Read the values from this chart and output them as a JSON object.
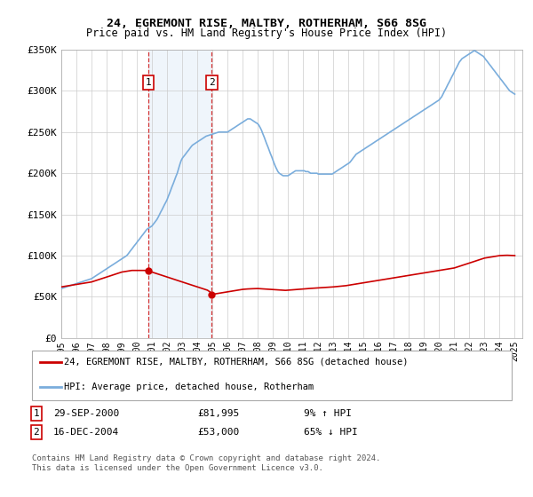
{
  "title": "24, EGREMONT RISE, MALTBY, ROTHERHAM, S66 8SG",
  "subtitle": "Price paid vs. HM Land Registry's House Price Index (HPI)",
  "ylim": [
    0,
    350000
  ],
  "yticks": [
    0,
    50000,
    100000,
    150000,
    200000,
    250000,
    300000,
    350000
  ],
  "ytick_labels": [
    "£0",
    "£50K",
    "£100K",
    "£150K",
    "£200K",
    "£250K",
    "£300K",
    "£350K"
  ],
  "xlim_start": 1995.0,
  "xlim_end": 2025.5,
  "xtick_years": [
    1995,
    1996,
    1997,
    1998,
    1999,
    2000,
    2001,
    2002,
    2003,
    2004,
    2005,
    2006,
    2007,
    2008,
    2009,
    2010,
    2011,
    2012,
    2013,
    2014,
    2015,
    2016,
    2017,
    2018,
    2019,
    2020,
    2021,
    2022,
    2023,
    2024,
    2025
  ],
  "transaction1_x": 2000.75,
  "transaction1_y": 81995,
  "transaction1_label": "1",
  "transaction1_date": "29-SEP-2000",
  "transaction1_price": "£81,995",
  "transaction1_hpi": "9% ↑ HPI",
  "transaction2_x": 2004.96,
  "transaction2_y": 53000,
  "transaction2_label": "2",
  "transaction2_date": "16-DEC-2004",
  "transaction2_price": "£53,000",
  "transaction2_hpi": "65% ↓ HPI",
  "legend_line1": "24, EGREMONT RISE, MALTBY, ROTHERHAM, S66 8SG (detached house)",
  "legend_line2": "HPI: Average price, detached house, Rotherham",
  "footnote": "Contains HM Land Registry data © Crown copyright and database right 2024.\nThis data is licensed under the Open Government Licence v3.0.",
  "property_color": "#cc0000",
  "hpi_color": "#7aaddc",
  "highlight_color": "#ddeeff",
  "background_color": "#ffffff",
  "hpi_x": [
    1995.0,
    1995.08,
    1995.17,
    1995.25,
    1995.33,
    1995.42,
    1995.5,
    1995.58,
    1995.67,
    1995.75,
    1995.83,
    1995.92,
    1996.0,
    1996.08,
    1996.17,
    1996.25,
    1996.33,
    1996.42,
    1996.5,
    1996.58,
    1996.67,
    1996.75,
    1996.83,
    1996.92,
    1997.0,
    1997.08,
    1997.17,
    1997.25,
    1997.33,
    1997.42,
    1997.5,
    1997.58,
    1997.67,
    1997.75,
    1997.83,
    1997.92,
    1998.0,
    1998.08,
    1998.17,
    1998.25,
    1998.33,
    1998.42,
    1998.5,
    1998.58,
    1998.67,
    1998.75,
    1998.83,
    1998.92,
    1999.0,
    1999.08,
    1999.17,
    1999.25,
    1999.33,
    1999.42,
    1999.5,
    1999.58,
    1999.67,
    1999.75,
    1999.83,
    1999.92,
    2000.0,
    2000.08,
    2000.17,
    2000.25,
    2000.33,
    2000.42,
    2000.5,
    2000.58,
    2000.67,
    2000.75,
    2000.83,
    2000.92,
    2001.0,
    2001.08,
    2001.17,
    2001.25,
    2001.33,
    2001.42,
    2001.5,
    2001.58,
    2001.67,
    2001.75,
    2001.83,
    2001.92,
    2002.0,
    2002.08,
    2002.17,
    2002.25,
    2002.33,
    2002.42,
    2002.5,
    2002.58,
    2002.67,
    2002.75,
    2002.83,
    2002.92,
    2003.0,
    2003.08,
    2003.17,
    2003.25,
    2003.33,
    2003.42,
    2003.5,
    2003.58,
    2003.67,
    2003.75,
    2003.83,
    2003.92,
    2004.0,
    2004.08,
    2004.17,
    2004.25,
    2004.33,
    2004.42,
    2004.5,
    2004.58,
    2004.67,
    2004.75,
    2004.83,
    2004.92,
    2005.0,
    2005.08,
    2005.17,
    2005.25,
    2005.33,
    2005.42,
    2005.5,
    2005.58,
    2005.67,
    2005.75,
    2005.83,
    2005.92,
    2006.0,
    2006.08,
    2006.17,
    2006.25,
    2006.33,
    2006.42,
    2006.5,
    2006.58,
    2006.67,
    2006.75,
    2006.83,
    2006.92,
    2007.0,
    2007.08,
    2007.17,
    2007.25,
    2007.33,
    2007.42,
    2007.5,
    2007.58,
    2007.67,
    2007.75,
    2007.83,
    2007.92,
    2008.0,
    2008.08,
    2008.17,
    2008.25,
    2008.33,
    2008.42,
    2008.5,
    2008.58,
    2008.67,
    2008.75,
    2008.83,
    2008.92,
    2009.0,
    2009.08,
    2009.17,
    2009.25,
    2009.33,
    2009.42,
    2009.5,
    2009.58,
    2009.67,
    2009.75,
    2009.83,
    2009.92,
    2010.0,
    2010.08,
    2010.17,
    2010.25,
    2010.33,
    2010.42,
    2010.5,
    2010.58,
    2010.67,
    2010.75,
    2010.83,
    2010.92,
    2011.0,
    2011.08,
    2011.17,
    2011.25,
    2011.33,
    2011.42,
    2011.5,
    2011.58,
    2011.67,
    2011.75,
    2011.83,
    2011.92,
    2012.0,
    2012.08,
    2012.17,
    2012.25,
    2012.33,
    2012.42,
    2012.5,
    2012.58,
    2012.67,
    2012.75,
    2012.83,
    2012.92,
    2013.0,
    2013.08,
    2013.17,
    2013.25,
    2013.33,
    2013.42,
    2013.5,
    2013.58,
    2013.67,
    2013.75,
    2013.83,
    2013.92,
    2014.0,
    2014.08,
    2014.17,
    2014.25,
    2014.33,
    2014.42,
    2014.5,
    2014.58,
    2014.67,
    2014.75,
    2014.83,
    2014.92,
    2015.0,
    2015.08,
    2015.17,
    2015.25,
    2015.33,
    2015.42,
    2015.5,
    2015.58,
    2015.67,
    2015.75,
    2015.83,
    2015.92,
    2016.0,
    2016.08,
    2016.17,
    2016.25,
    2016.33,
    2016.42,
    2016.5,
    2016.58,
    2016.67,
    2016.75,
    2016.83,
    2016.92,
    2017.0,
    2017.08,
    2017.17,
    2017.25,
    2017.33,
    2017.42,
    2017.5,
    2017.58,
    2017.67,
    2017.75,
    2017.83,
    2017.92,
    2018.0,
    2018.08,
    2018.17,
    2018.25,
    2018.33,
    2018.42,
    2018.5,
    2018.58,
    2018.67,
    2018.75,
    2018.83,
    2018.92,
    2019.0,
    2019.08,
    2019.17,
    2019.25,
    2019.33,
    2019.42,
    2019.5,
    2019.58,
    2019.67,
    2019.75,
    2019.83,
    2019.92,
    2020.0,
    2020.08,
    2020.17,
    2020.25,
    2020.33,
    2020.42,
    2020.5,
    2020.58,
    2020.67,
    2020.75,
    2020.83,
    2020.92,
    2021.0,
    2021.08,
    2021.17,
    2021.25,
    2021.33,
    2021.42,
    2021.5,
    2021.58,
    2021.67,
    2021.75,
    2021.83,
    2021.92,
    2022.0,
    2022.08,
    2022.17,
    2022.25,
    2022.33,
    2022.42,
    2022.5,
    2022.58,
    2022.67,
    2022.75,
    2022.83,
    2022.92,
    2023.0,
    2023.08,
    2023.17,
    2023.25,
    2023.33,
    2023.42,
    2023.5,
    2023.58,
    2023.67,
    2023.75,
    2023.83,
    2023.92,
    2024.0,
    2024.08,
    2024.17,
    2024.25,
    2024.33,
    2024.42,
    2024.5,
    2024.58,
    2024.67,
    2024.75,
    2024.83,
    2024.92,
    2025.0
  ],
  "hpi_y": [
    60000,
    60500,
    61000,
    61500,
    62000,
    62500,
    63000,
    63500,
    64000,
    64500,
    65000,
    65500,
    66000,
    66500,
    67000,
    67500,
    68000,
    68500,
    69000,
    69500,
    70000,
    70500,
    71000,
    71500,
    72000,
    73000,
    74000,
    75000,
    76000,
    77000,
    78000,
    79000,
    80000,
    81000,
    82000,
    83000,
    84000,
    85000,
    86000,
    87000,
    88000,
    89000,
    90000,
    91000,
    92000,
    93000,
    94000,
    95000,
    96000,
    97000,
    98000,
    99000,
    100000,
    102000,
    104000,
    106000,
    108000,
    110000,
    112000,
    114000,
    116000,
    118000,
    120000,
    122000,
    124000,
    126000,
    128000,
    130000,
    132000,
    133000,
    134000,
    135000,
    136000,
    138000,
    140000,
    142000,
    144000,
    147000,
    150000,
    153000,
    156000,
    159000,
    162000,
    165000,
    168000,
    172000,
    176000,
    180000,
    184000,
    188000,
    192000,
    196000,
    200000,
    205000,
    210000,
    215000,
    218000,
    220000,
    222000,
    224000,
    226000,
    228000,
    230000,
    232000,
    234000,
    235000,
    236000,
    237000,
    238000,
    239000,
    240000,
    241000,
    242000,
    243000,
    244000,
    245000,
    245500,
    246000,
    246500,
    247000,
    247500,
    248000,
    248500,
    249000,
    249500,
    250000,
    250000,
    250000,
    250000,
    250000,
    250000,
    250000,
    250000,
    251000,
    252000,
    253000,
    254000,
    255000,
    256000,
    257000,
    258000,
    259000,
    260000,
    261000,
    262000,
    263000,
    264000,
    265000,
    266000,
    266000,
    266000,
    265000,
    264000,
    263000,
    262000,
    261000,
    260000,
    258000,
    255000,
    252000,
    248000,
    244000,
    240000,
    236000,
    232000,
    228000,
    224000,
    220000,
    216000,
    212000,
    208000,
    205000,
    202000,
    200000,
    199000,
    198000,
    197000,
    197000,
    197000,
    197000,
    197000,
    198000,
    199000,
    200000,
    201000,
    202000,
    203000,
    203000,
    203000,
    203000,
    203000,
    203000,
    203000,
    203000,
    202000,
    202000,
    202000,
    201000,
    200000,
    200000,
    200000,
    200000,
    200000,
    200000,
    199000,
    199000,
    199000,
    199000,
    199000,
    199000,
    199000,
    199000,
    199000,
    199000,
    199000,
    199000,
    200000,
    201000,
    202000,
    203000,
    204000,
    205000,
    206000,
    207000,
    208000,
    209000,
    210000,
    211000,
    212000,
    213000,
    215000,
    217000,
    219000,
    221000,
    223000,
    224000,
    225000,
    226000,
    227000,
    228000,
    229000,
    230000,
    231000,
    232000,
    233000,
    234000,
    235000,
    236000,
    237000,
    238000,
    239000,
    240000,
    241000,
    242000,
    243000,
    244000,
    245000,
    246000,
    247000,
    248000,
    249000,
    250000,
    251000,
    252000,
    253000,
    254000,
    255000,
    256000,
    257000,
    258000,
    259000,
    260000,
    261000,
    262000,
    263000,
    264000,
    265000,
    266000,
    267000,
    268000,
    269000,
    270000,
    271000,
    272000,
    273000,
    274000,
    275000,
    276000,
    277000,
    278000,
    279000,
    280000,
    281000,
    282000,
    283000,
    284000,
    285000,
    286000,
    287000,
    288000,
    289000,
    291000,
    293000,
    296000,
    299000,
    302000,
    305000,
    308000,
    311000,
    314000,
    317000,
    320000,
    323000,
    326000,
    329000,
    332000,
    335000,
    337000,
    339000,
    340000,
    341000,
    342000,
    343000,
    344000,
    345000,
    346000,
    347000,
    348000,
    349000,
    348000,
    347000,
    346000,
    345000,
    344000,
    343000,
    342000,
    340000,
    338000,
    336000,
    334000,
    332000,
    330000,
    328000,
    326000,
    324000,
    322000,
    320000,
    318000,
    316000,
    314000,
    312000,
    310000,
    308000,
    306000,
    304000,
    302000,
    300000,
    299000,
    298000,
    297000,
    296000
  ],
  "prop_x": [
    1995.0,
    1995.17,
    1995.33,
    1995.5,
    1995.67,
    1995.83,
    1996.0,
    1996.17,
    1996.33,
    1996.5,
    1996.67,
    1996.83,
    1997.0,
    1997.17,
    1997.33,
    1997.5,
    1997.67,
    1997.83,
    1998.0,
    1998.17,
    1998.33,
    1998.5,
    1998.67,
    1998.83,
    1999.0,
    1999.17,
    1999.33,
    1999.5,
    1999.67,
    1999.83,
    2000.0,
    2000.17,
    2000.33,
    2000.5,
    2000.67,
    2000.75,
    2000.83,
    2001.0,
    2001.17,
    2001.33,
    2001.5,
    2001.67,
    2001.83,
    2002.0,
    2002.17,
    2002.33,
    2002.5,
    2002.67,
    2002.83,
    2003.0,
    2003.17,
    2003.33,
    2003.5,
    2003.67,
    2003.83,
    2004.0,
    2004.17,
    2004.33,
    2004.5,
    2004.67,
    2004.83,
    2004.96,
    2005.0,
    2005.17,
    2005.33,
    2005.5,
    2005.67,
    2005.83,
    2006.0,
    2006.17,
    2006.33,
    2006.5,
    2006.67,
    2006.83,
    2007.0,
    2007.17,
    2007.33,
    2007.5,
    2007.67,
    2007.83,
    2008.0,
    2008.17,
    2008.33,
    2008.5,
    2008.67,
    2008.83,
    2009.0,
    2009.17,
    2009.33,
    2009.5,
    2009.67,
    2009.83,
    2010.0,
    2010.17,
    2010.33,
    2010.5,
    2010.67,
    2010.83,
    2011.0,
    2011.17,
    2011.33,
    2011.5,
    2011.67,
    2011.83,
    2012.0,
    2012.17,
    2012.33,
    2012.5,
    2012.67,
    2012.83,
    2013.0,
    2013.17,
    2013.33,
    2013.5,
    2013.67,
    2013.83,
    2014.0,
    2014.17,
    2014.33,
    2014.5,
    2014.67,
    2014.83,
    2015.0,
    2015.17,
    2015.33,
    2015.5,
    2015.67,
    2015.83,
    2016.0,
    2016.17,
    2016.33,
    2016.5,
    2016.67,
    2016.83,
    2017.0,
    2017.17,
    2017.33,
    2017.5,
    2017.67,
    2017.83,
    2018.0,
    2018.17,
    2018.33,
    2018.5,
    2018.67,
    2018.83,
    2019.0,
    2019.17,
    2019.33,
    2019.5,
    2019.67,
    2019.83,
    2020.0,
    2020.17,
    2020.33,
    2020.5,
    2020.67,
    2020.83,
    2021.0,
    2021.17,
    2021.33,
    2021.5,
    2021.67,
    2021.83,
    2022.0,
    2022.17,
    2022.33,
    2022.5,
    2022.67,
    2022.83,
    2023.0,
    2023.17,
    2023.33,
    2023.5,
    2023.67,
    2023.83,
    2024.0,
    2024.17,
    2024.33,
    2024.5,
    2024.67,
    2024.83,
    2025.0
  ],
  "prop_y": [
    62000,
    62500,
    63000,
    63500,
    64000,
    64500,
    65000,
    65500,
    66000,
    66500,
    67000,
    67500,
    68000,
    69000,
    70000,
    71000,
    72000,
    73000,
    74000,
    75000,
    76000,
    77000,
    78000,
    79000,
    80000,
    80500,
    81000,
    81500,
    82000,
    82000,
    82000,
    82000,
    82000,
    82000,
    82000,
    81995,
    81000,
    80000,
    79000,
    78000,
    77000,
    76000,
    75000,
    74000,
    73000,
    72000,
    71000,
    70000,
    69000,
    68000,
    67000,
    66000,
    65000,
    64000,
    63000,
    62000,
    61000,
    60000,
    59000,
    58000,
    56000,
    53000,
    53200,
    53500,
    54000,
    54500,
    55000,
    55500,
    56000,
    56500,
    57000,
    57500,
    58000,
    58500,
    59000,
    59300,
    59500,
    59700,
    59800,
    59900,
    60000,
    59800,
    59600,
    59400,
    59200,
    59000,
    58800,
    58600,
    58400,
    58200,
    58000,
    57800,
    58000,
    58200,
    58500,
    58800,
    59000,
    59200,
    59500,
    59700,
    60000,
    60200,
    60400,
    60600,
    60800,
    61000,
    61200,
    61400,
    61600,
    61800,
    62000,
    62300,
    62600,
    62900,
    63200,
    63500,
    64000,
    64500,
    65000,
    65500,
    66000,
    66500,
    67000,
    67500,
    68000,
    68500,
    69000,
    69500,
    70000,
    70500,
    71000,
    71500,
    72000,
    72500,
    73000,
    73500,
    74000,
    74500,
    75000,
    75500,
    76000,
    76500,
    77000,
    77500,
    78000,
    78500,
    79000,
    79500,
    80000,
    80500,
    81000,
    81500,
    82000,
    82500,
    83000,
    83500,
    84000,
    84500,
    85000,
    86000,
    87000,
    88000,
    89000,
    90000,
    91000,
    92000,
    93000,
    94000,
    95000,
    96000,
    97000,
    97500,
    98000,
    98500,
    99000,
    99500,
    100000,
    100200,
    100300,
    100400,
    100300,
    100200,
    100000
  ]
}
